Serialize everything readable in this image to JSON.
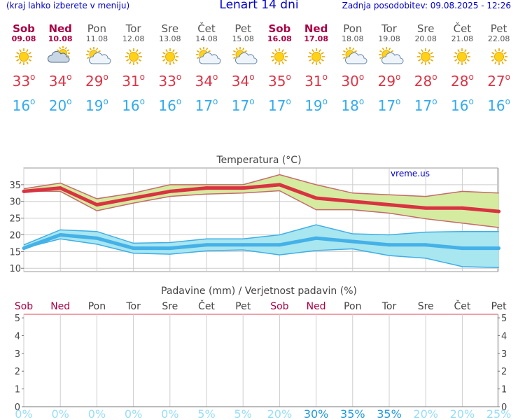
{
  "header": {
    "hint": "(kraj lahko izberete v meniju)",
    "title": "Lenart 14 dni",
    "updated": "Zadnja posodobitev: 09.08.2025 - 12:26"
  },
  "colors": {
    "max_line": "#d93342",
    "max_band": "#d4eba0",
    "min_line": "#44b1e8",
    "min_band": "#a8e6f0",
    "weekend": "#aa0044",
    "max_text": "#dd3344",
    "min_text": "#33aaee",
    "prob_light": "#99ddf8",
    "prob_dark": "#2299dd"
  },
  "days": [
    {
      "name": "Sob",
      "date": "09.08",
      "weekend": true,
      "icon": "sun-icon",
      "max": "33",
      "min": "16"
    },
    {
      "name": "Ned",
      "date": "10.08",
      "weekend": true,
      "icon": "partly-cloudy-icon",
      "max": "34",
      "min": "20"
    },
    {
      "name": "Pon",
      "date": "11.08",
      "weekend": false,
      "icon": "sun-cloud-icon",
      "max": "29",
      "min": "19"
    },
    {
      "name": "Tor",
      "date": "12.08",
      "weekend": false,
      "icon": "sun-icon",
      "max": "31",
      "min": "16"
    },
    {
      "name": "Sre",
      "date": "13.08",
      "weekend": false,
      "icon": "sun-icon",
      "max": "33",
      "min": "16"
    },
    {
      "name": "Čet",
      "date": "14.08",
      "weekend": false,
      "icon": "sun-cloud-icon",
      "max": "34",
      "min": "17"
    },
    {
      "name": "Pet",
      "date": "15.08",
      "weekend": false,
      "icon": "sun-cloud-icon",
      "max": "34",
      "min": "17"
    },
    {
      "name": "Sob",
      "date": "16.08",
      "weekend": true,
      "icon": "sun-icon",
      "max": "35",
      "min": "17"
    },
    {
      "name": "Ned",
      "date": "17.08",
      "weekend": true,
      "icon": "sun-icon",
      "max": "31",
      "min": "19"
    },
    {
      "name": "Pon",
      "date": "18.08",
      "weekend": false,
      "icon": "sun-cloud-icon",
      "max": "30",
      "min": "18"
    },
    {
      "name": "Tor",
      "date": "19.08",
      "weekend": false,
      "icon": "sun-cloud-icon",
      "max": "29",
      "min": "17"
    },
    {
      "name": "Sre",
      "date": "20.08",
      "weekend": false,
      "icon": "sun-icon",
      "max": "28",
      "min": "17"
    },
    {
      "name": "Čet",
      "date": "21.08",
      "weekend": false,
      "icon": "sun-icon",
      "max": "28",
      "min": "16"
    },
    {
      "name": "Pet",
      "date": "22.08",
      "weekend": false,
      "icon": "sun-icon",
      "max": "27",
      "min": "16"
    }
  ],
  "chart_data": [
    {
      "type": "line",
      "title": "Temperatura (°C)",
      "watermark": "vreme.us",
      "ylim": [
        9,
        40
      ],
      "yticks": [
        "10",
        "15",
        "20",
        "25",
        "30",
        "35"
      ],
      "categories": [
        "Sob",
        "Ned",
        "Pon",
        "Tor",
        "Sre",
        "Čet",
        "Pet",
        "Sob",
        "Ned",
        "Pon",
        "Tor",
        "Sre",
        "Čet",
        "Pet"
      ],
      "series": [
        {
          "name": "max",
          "values": [
            33,
            34,
            29,
            31,
            33,
            34,
            34,
            35,
            31,
            30,
            29,
            28,
            28,
            27
          ],
          "band_low": [
            33,
            33,
            27.2,
            29.5,
            31.5,
            32.2,
            32.5,
            33.2,
            27.5,
            27.5,
            26.5,
            24.8,
            23.5,
            22.2
          ],
          "band_high": [
            33.8,
            35.5,
            30.8,
            32.5,
            35,
            35,
            35,
            38,
            35,
            32.5,
            32,
            31.5,
            33,
            32.5
          ]
        },
        {
          "name": "min",
          "values": [
            16,
            20,
            19,
            16,
            16,
            17,
            17,
            17,
            19,
            18,
            17,
            17,
            16,
            16
          ],
          "band_low": [
            16,
            18.8,
            17.2,
            14.5,
            14.2,
            15.2,
            15.5,
            14,
            15.3,
            15.8,
            13.8,
            13,
            10.5,
            10.2
          ],
          "band_high": [
            17,
            21.5,
            21,
            17.5,
            17.7,
            18.8,
            18.8,
            20,
            23,
            20.3,
            20,
            20.8,
            21,
            21
          ]
        }
      ]
    },
    {
      "type": "bar",
      "title": "Padavine (mm) / Verjetnost padavin (%)",
      "ylim": [
        0,
        5.2
      ],
      "yticks": [
        "0",
        "1",
        "2",
        "3",
        "4",
        "5"
      ],
      "categories": [
        "Sob",
        "Ned",
        "Pon",
        "Tor",
        "Sre",
        "Čet",
        "Pet",
        "Sob",
        "Ned",
        "Pon",
        "Tor",
        "Sre",
        "Čet",
        "Pet"
      ],
      "precipitation_mm": [
        0,
        0,
        0,
        0,
        0,
        0,
        0,
        0,
        0,
        0,
        0,
        0,
        0,
        0
      ],
      "probability_labels": [
        "0%",
        "0%",
        "0%",
        "0%",
        "0%",
        "5%",
        "5%",
        "20%",
        "30%",
        "35%",
        "35%",
        "20%",
        "20%",
        "25%"
      ],
      "probability_values": [
        0,
        0,
        0,
        0,
        0,
        5,
        5,
        20,
        30,
        35,
        35,
        20,
        20,
        25
      ]
    }
  ]
}
